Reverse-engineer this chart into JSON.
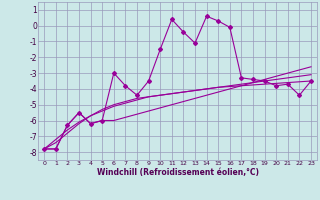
{
  "xlabel": "Windchill (Refroidissement éolien,°C)",
  "x": [
    0,
    1,
    2,
    3,
    4,
    5,
    6,
    7,
    8,
    9,
    10,
    11,
    12,
    13,
    14,
    15,
    16,
    17,
    18,
    19,
    20,
    21,
    22,
    23
  ],
  "series1": [
    -7.8,
    -7.8,
    -6.3,
    -5.5,
    -6.2,
    -6.0,
    -3.0,
    -3.8,
    -4.4,
    -3.5,
    -1.5,
    0.4,
    -0.4,
    -1.1,
    0.6,
    0.3,
    -0.1,
    -3.3,
    -3.4,
    -3.5,
    -3.8,
    -3.7,
    -4.4,
    -3.5
  ],
  "series2": [
    -7.8,
    -7.8,
    -6.3,
    -5.5,
    -6.2,
    -6.0,
    -6.0,
    -5.8,
    -5.6,
    -5.4,
    -5.2,
    -5.0,
    -4.8,
    -4.6,
    -4.4,
    -4.2,
    -4.0,
    -3.8,
    -3.6,
    -3.4,
    -3.2,
    -3.0,
    -2.8,
    -2.6
  ],
  "series3": [
    -7.8,
    -7.4,
    -6.8,
    -6.2,
    -5.7,
    -5.3,
    -5.0,
    -4.8,
    -4.6,
    -4.5,
    -4.4,
    -4.3,
    -4.2,
    -4.1,
    -4.0,
    -3.9,
    -3.8,
    -3.7,
    -3.6,
    -3.5,
    -3.4,
    -3.3,
    -3.2,
    -3.1
  ],
  "series4": [
    -7.8,
    -7.2,
    -6.6,
    -6.1,
    -5.7,
    -5.4,
    -5.1,
    -4.9,
    -4.7,
    -4.5,
    -4.4,
    -4.3,
    -4.2,
    -4.1,
    -4.0,
    -3.9,
    -3.85,
    -3.8,
    -3.75,
    -3.7,
    -3.65,
    -3.6,
    -3.55,
    -3.5
  ],
  "line_color": "#990099",
  "bg_color": "#cce8e8",
  "grid_color": "#9999bb",
  "ylim": [
    -8.5,
    1.5
  ],
  "yticks": [
    -8,
    -7,
    -6,
    -5,
    -4,
    -3,
    -2,
    -1,
    0,
    1
  ],
  "xlim": [
    -0.5,
    23.5
  ]
}
